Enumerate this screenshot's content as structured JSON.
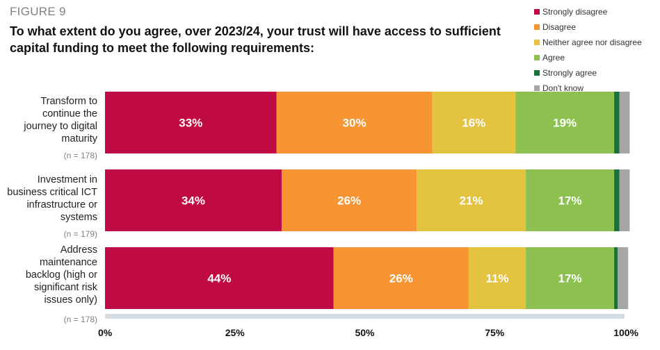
{
  "figure_label": "FIGURE 9",
  "chart_data": {
    "type": "bar",
    "orientation": "horizontal",
    "stacked": true,
    "title": "To what extent do you agree, over 2023/24, your trust will have access to sufficient capital funding to meet the following requirements:",
    "categories": [
      "Transform to continue the journey to digital maturity",
      "Investment in business critical ICT infrastructure or systems",
      "Address maintenance backlog (high or significant risk issues only)"
    ],
    "category_lines": [
      [
        "Transform to",
        "continue the",
        "journey to digital",
        "maturity"
      ],
      [
        "Investment in",
        "business critical ICT",
        "infrastructure or",
        "systems"
      ],
      [
        "Address",
        "maintenance",
        "backlog (high or",
        "significant risk",
        "issues only)"
      ]
    ],
    "sample_sizes": [
      "(n = 178)",
      "(n = 179)",
      "(n = 178)"
    ],
    "series": [
      {
        "name": "Strongly disagree",
        "color": "#c00a43",
        "values": [
          33,
          34,
          44
        ],
        "labels": [
          "33%",
          "34%",
          "44%"
        ]
      },
      {
        "name": "Disagree",
        "color": "#f79433",
        "values": [
          30,
          26,
          26
        ],
        "labels": [
          "30%",
          "26%",
          "26%"
        ]
      },
      {
        "name": "Neither agree nor disagree",
        "color": "#e3c340",
        "values": [
          16,
          21,
          11
        ],
        "labels": [
          "16%",
          "21%",
          "11%"
        ]
      },
      {
        "name": "Agree",
        "color": "#8cc150",
        "values": [
          19,
          17,
          17
        ],
        "labels": [
          "19%",
          "17%",
          "17%"
        ]
      },
      {
        "name": "Strongly agree",
        "color": "#17733a",
        "values": [
          1,
          1,
          0.7
        ],
        "labels": [
          "",
          "",
          ""
        ]
      },
      {
        "name": "Don't know",
        "color": "#a6a6a6",
        "values": [
          2,
          2,
          2
        ],
        "labels": [
          "",
          "",
          ""
        ]
      }
    ],
    "x_ticks": [
      "0%",
      "25%",
      "50%",
      "75%",
      "100%"
    ],
    "xlim": [
      0,
      100
    ],
    "grid": false,
    "legend_position": "top-right"
  }
}
